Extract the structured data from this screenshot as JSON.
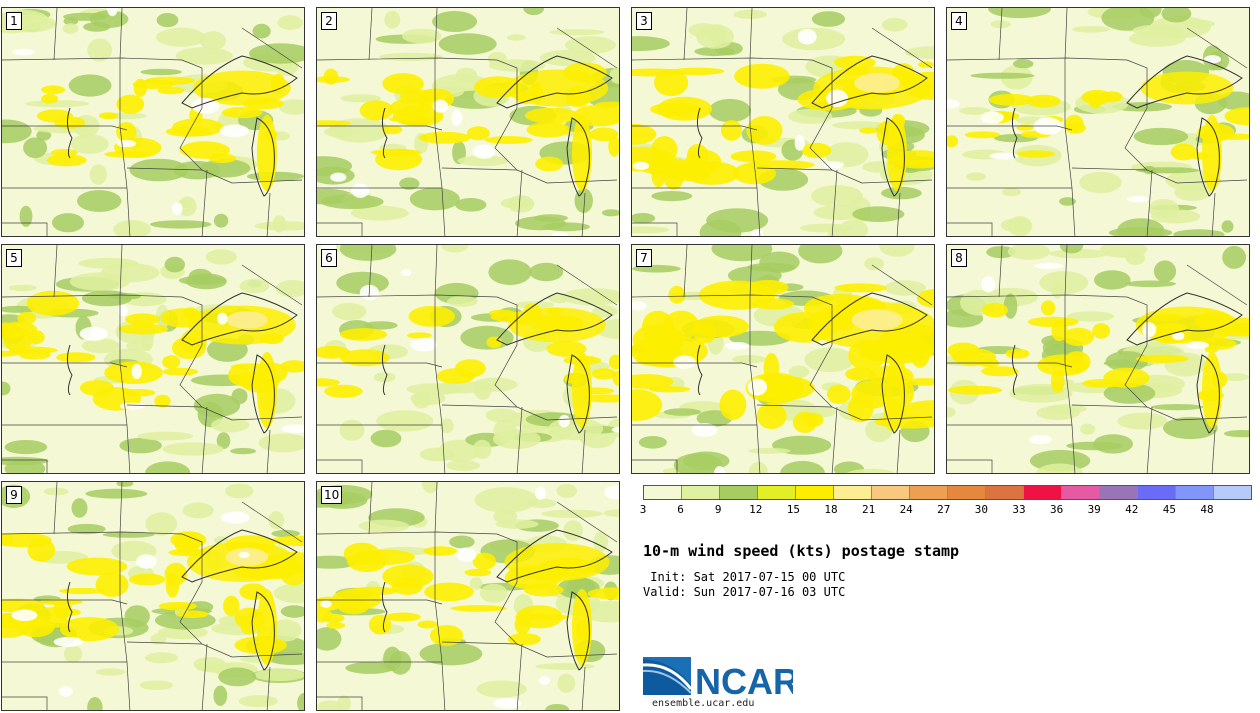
{
  "panels": [
    {
      "label": "1",
      "level": 0.35
    },
    {
      "label": "2",
      "level": 0.45
    },
    {
      "label": "3",
      "level": 0.75
    },
    {
      "label": "4",
      "level": 0.25
    },
    {
      "label": "5",
      "level": 0.55
    },
    {
      "label": "6",
      "level": 0.35
    },
    {
      "label": "7",
      "level": 0.95
    },
    {
      "label": "8",
      "level": 0.45
    },
    {
      "label": "9",
      "level": 0.6
    },
    {
      "label": "10",
      "level": 0.5
    }
  ],
  "legend": {
    "ticks": [
      "3",
      "6",
      "9",
      "12",
      "15",
      "18",
      "21",
      "24",
      "27",
      "30",
      "33",
      "36",
      "39",
      "42",
      "45",
      "48"
    ],
    "colors": [
      "#f4f8d4",
      "#dff0a0",
      "#a6cc62",
      "#e3ef26",
      "#fdee00",
      "#fdee93",
      "#f7c87d",
      "#eda052",
      "#e5883e",
      "#dd7340",
      "#ee1245",
      "#e55aa2",
      "#9975b8",
      "#6a6bf6",
      "#8295fa",
      "#b7cbfa"
    ]
  },
  "title": "10-m wind speed (kts) postage stamp",
  "init": " Init: Sat 2017-07-15 00 UTC",
  "valid": "Valid: Sun 2017-07-16 03 UTC",
  "logo": {
    "text": "NCAR",
    "color": "#1565a8"
  },
  "website": "ensemble.ucar.edu"
}
